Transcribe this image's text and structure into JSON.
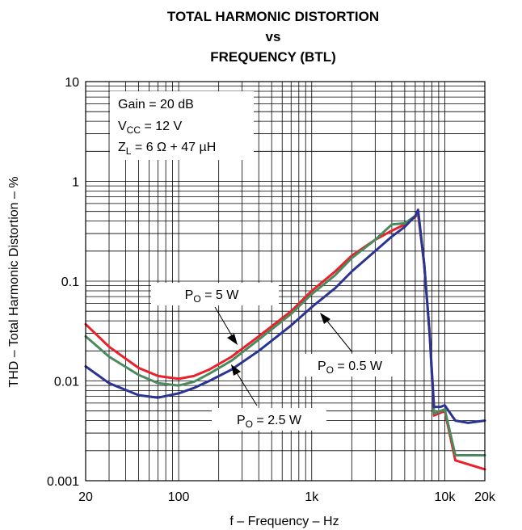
{
  "chart_data": {
    "type": "line",
    "title_lines": [
      "TOTAL HARMONIC DISTORTION",
      "vs",
      "FREQUENCY (BTL)"
    ],
    "xlabel": "f – Frequency – Hz",
    "ylabel": "THD – Total Harmonic Distortion – %",
    "x_scale": "log",
    "y_scale": "log",
    "xlim": [
      20,
      20000
    ],
    "ylim": [
      0.001,
      10
    ],
    "x_ticks": [
      {
        "value": 20,
        "label": "20"
      },
      {
        "value": 100,
        "label": "100"
      },
      {
        "value": 1000,
        "label": "1k"
      },
      {
        "value": 10000,
        "label": "10k"
      },
      {
        "value": 20000,
        "label": "20k"
      }
    ],
    "y_ticks": [
      {
        "value": 0.001,
        "label": "0.001"
      },
      {
        "value": 0.01,
        "label": "0.01"
      },
      {
        "value": 0.1,
        "label": "0.1"
      },
      {
        "value": 1,
        "label": "1"
      },
      {
        "value": 10,
        "label": "10"
      }
    ],
    "grid": true,
    "conditions": {
      "gain": {
        "text": "Gain = 20 dB"
      },
      "vcc": {
        "main": "V",
        "sub": "CC",
        "rest": " = 12 V"
      },
      "zl": {
        "main": "Z",
        "sub": "L",
        "rest": " = 6 Ω + 47 µH"
      }
    },
    "series": [
      {
        "label": {
          "main": "P",
          "sub": "O",
          "rest": " = 5 W"
        },
        "color": "#e8212b",
        "points": [
          [
            20,
            0.037
          ],
          [
            30,
            0.022
          ],
          [
            50,
            0.0135
          ],
          [
            70,
            0.0112
          ],
          [
            100,
            0.0105
          ],
          [
            130,
            0.0112
          ],
          [
            170,
            0.013
          ],
          [
            250,
            0.0175
          ],
          [
            400,
            0.028
          ],
          [
            700,
            0.05
          ],
          [
            1000,
            0.08
          ],
          [
            1500,
            0.125
          ],
          [
            2000,
            0.18
          ],
          [
            3000,
            0.26
          ],
          [
            4000,
            0.32
          ],
          [
            5000,
            0.37
          ],
          [
            6000,
            0.44
          ],
          [
            6300,
            0.47
          ],
          [
            7000,
            0.15
          ],
          [
            7700,
            0.03
          ],
          [
            8300,
            0.0045
          ],
          [
            9300,
            0.0048
          ],
          [
            10000,
            0.005
          ],
          [
            12000,
            0.0016
          ],
          [
            20000,
            0.0013
          ]
        ]
      },
      {
        "label": {
          "main": "P",
          "sub": "O",
          "rest": " = 2.5 W"
        },
        "color": "#4a8a5e",
        "points": [
          [
            20,
            0.028
          ],
          [
            30,
            0.0175
          ],
          [
            50,
            0.0115
          ],
          [
            70,
            0.0095
          ],
          [
            100,
            0.009
          ],
          [
            130,
            0.0098
          ],
          [
            170,
            0.0118
          ],
          [
            250,
            0.016
          ],
          [
            400,
            0.026
          ],
          [
            700,
            0.047
          ],
          [
            1000,
            0.074
          ],
          [
            1500,
            0.115
          ],
          [
            2000,
            0.17
          ],
          [
            3000,
            0.26
          ],
          [
            4000,
            0.37
          ],
          [
            5000,
            0.38
          ],
          [
            6000,
            0.45
          ],
          [
            6300,
            0.5
          ],
          [
            7000,
            0.15
          ],
          [
            7700,
            0.03
          ],
          [
            8300,
            0.0047
          ],
          [
            9300,
            0.005
          ],
          [
            10000,
            0.0052
          ],
          [
            12000,
            0.0018
          ],
          [
            20000,
            0.0018
          ]
        ]
      },
      {
        "label": {
          "main": "P",
          "sub": "O",
          "rest": " = 0.5 W"
        },
        "color": "#2b3591",
        "points": [
          [
            20,
            0.014
          ],
          [
            30,
            0.0095
          ],
          [
            50,
            0.0072
          ],
          [
            70,
            0.0068
          ],
          [
            100,
            0.0075
          ],
          [
            130,
            0.0085
          ],
          [
            170,
            0.01
          ],
          [
            250,
            0.013
          ],
          [
            400,
            0.02
          ],
          [
            700,
            0.036
          ],
          [
            1000,
            0.055
          ],
          [
            1500,
            0.085
          ],
          [
            2000,
            0.125
          ],
          [
            3000,
            0.2
          ],
          [
            4000,
            0.28
          ],
          [
            5000,
            0.35
          ],
          [
            6000,
            0.45
          ],
          [
            6300,
            0.52
          ],
          [
            7000,
            0.15
          ],
          [
            7700,
            0.03
          ],
          [
            8300,
            0.0055
          ],
          [
            9300,
            0.0055
          ],
          [
            10000,
            0.0057
          ],
          [
            12000,
            0.004
          ],
          [
            15000,
            0.0038
          ],
          [
            20000,
            0.004
          ]
        ]
      }
    ]
  }
}
